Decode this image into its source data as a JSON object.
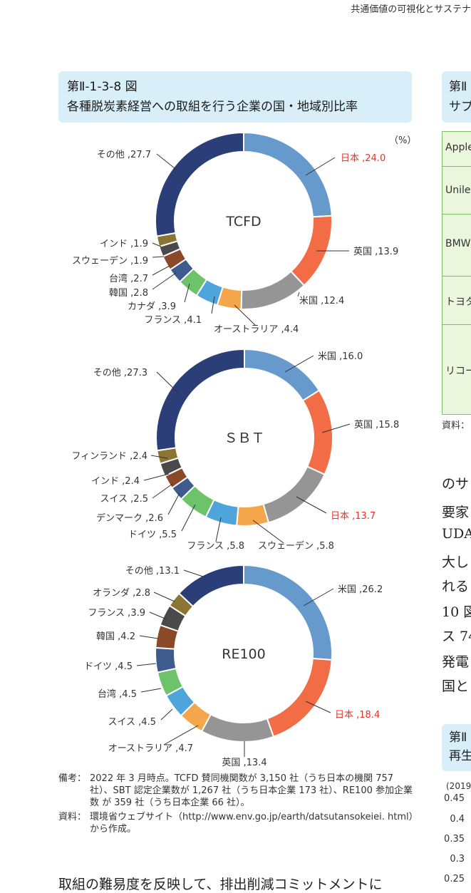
{
  "running_head": "共通価値の可視化とサステナ",
  "figure": {
    "number": "第Ⅱ-1-3-8 図",
    "title": "各種脱炭素経営への取組を行う企業の国・地域別比率",
    "unit": "（%）"
  },
  "colors": {
    "highlight_label": "#e0342c",
    "header_bg": "#d8eef8"
  },
  "chart_data": [
    {
      "type": "pie",
      "center_label": "TCFD",
      "slices": [
        {
          "label": "日本",
          "value": 24.0,
          "text": "日本 ,24.0",
          "color": "#6699cc",
          "highlight": true
        },
        {
          "label": "英国",
          "value": 13.9,
          "text": "英国 ,13.9",
          "color": "#f26d45"
        },
        {
          "label": "米国",
          "value": 12.4,
          "text": "米国 ,12.4",
          "color": "#959595"
        },
        {
          "label": "オーストラリア",
          "value": 4.4,
          "text": "オーストラリア ,4.4",
          "color": "#f6a64a"
        },
        {
          "label": "フランス",
          "value": 4.1,
          "text": "フランス ,4.1",
          "color": "#4ea5dc"
        },
        {
          "label": "カナダ",
          "value": 3.9,
          "text": "カナダ ,3.9",
          "color": "#6cc36a"
        },
        {
          "label": "韓国",
          "value": 2.8,
          "text": "韓国 ,2.8",
          "color": "#3d5b8c"
        },
        {
          "label": "台湾",
          "value": 2.7,
          "text": "台湾 ,2.7",
          "color": "#8a4a2a"
        },
        {
          "label": "スウェーデン",
          "value": 1.9,
          "text": "スウェーデン ,1.9",
          "color": "#4a4a4a"
        },
        {
          "label": "インド",
          "value": 1.9,
          "text": "インド ,1.9",
          "color": "#8a7632"
        },
        {
          "label": "その他",
          "value": 27.7,
          "text": "その他 ,27.7",
          "color": "#2b3e78"
        }
      ]
    },
    {
      "type": "pie",
      "center_label": "ＳＢＴ",
      "slices": [
        {
          "label": "米国",
          "value": 16.0,
          "text": "米国 ,16.0",
          "color": "#6699cc"
        },
        {
          "label": "英国",
          "value": 15.8,
          "text": "英国 ,15.8",
          "color": "#f26d45"
        },
        {
          "label": "日本",
          "value": 13.7,
          "text": "日本 ,13.7",
          "color": "#959595",
          "highlight": true
        },
        {
          "label": "スウェーデン",
          "value": 5.8,
          "text": "スウェーデン ,5.8",
          "color": "#f6a64a"
        },
        {
          "label": "フランス",
          "value": 5.8,
          "text": "フランス ,5.8",
          "color": "#4ea5dc"
        },
        {
          "label": "ドイツ",
          "value": 5.5,
          "text": "ドイツ ,5.5",
          "color": "#6cc36a"
        },
        {
          "label": "デンマーク",
          "value": 2.6,
          "text": "デンマーク ,2.6",
          "color": "#3d5b8c"
        },
        {
          "label": "スイス",
          "value": 2.5,
          "text": "スイス ,2.5",
          "color": "#8a4a2a"
        },
        {
          "label": "インド",
          "value": 2.4,
          "text": "インド ,2.4",
          "color": "#4a4a4a"
        },
        {
          "label": "フィンランド",
          "value": 2.4,
          "text": "フィンランド ,2.4",
          "color": "#8a7632"
        },
        {
          "label": "その他",
          "value": 27.3,
          "text": "その他 ,27.3",
          "color": "#2b3e78"
        }
      ]
    },
    {
      "type": "pie",
      "center_label": "RE100",
      "slices": [
        {
          "label": "米国",
          "value": 26.2,
          "text": "米国 ,26.2",
          "color": "#6699cc"
        },
        {
          "label": "日本",
          "value": 18.4,
          "text": "日本 ,18.4",
          "color": "#f26d45",
          "highlight": true
        },
        {
          "label": "英国",
          "value": 13.4,
          "text": "英国 ,13.4",
          "color": "#959595"
        },
        {
          "label": "オーストラリア",
          "value": 4.7,
          "text": "オーストラリア ,4.7",
          "color": "#f6a64a"
        },
        {
          "label": "スイス",
          "value": 4.5,
          "text": "スイス ,4.5",
          "color": "#4ea5dc"
        },
        {
          "label": "台湾",
          "value": 4.5,
          "text": "台湾 ,4.5",
          "color": "#6cc36a"
        },
        {
          "label": "ドイツ",
          "value": 4.5,
          "text": "ドイツ ,4.5",
          "color": "#3d5b8c"
        },
        {
          "label": "韓国",
          "value": 4.2,
          "text": "韓国 ,4.2",
          "color": "#8a4a2a"
        },
        {
          "label": "フランス",
          "value": 3.9,
          "text": "フランス ,3.9",
          "color": "#4a4a4a"
        },
        {
          "label": "オランダ",
          "value": 2.8,
          "text": "オランダ ,2.8",
          "color": "#8a7632"
        },
        {
          "label": "その他",
          "value": 13.1,
          "text": "その他 ,13.1",
          "color": "#2b3e78"
        }
      ]
    }
  ],
  "notes": {
    "biko_key": "備考：",
    "biko_text": "2022 年 3 月時点。TCFD 賛同機関数が 3,150 社（うち日本の機関 757 社）、SBT 認定企業数が 1,267 社（うち日本企業 173 社）、RE100 参加企業数 が 359 社（うち日本企業 66 社）。",
    "source_key": "資料：",
    "source_text": "環境省ウェブサイト（http://www.env.go.jp/earth/datsutansokeiei. html）から作成。"
  },
  "body_text": "取組の難易度を反映して、排出削減コミットメントに",
  "right_column": {
    "fig_head_line1": "第Ⅱ",
    "fig_head_line2": "サプ",
    "table_rows": [
      "Apple",
      "Unile",
      "BMW",
      "トヨタ",
      "リコー"
    ],
    "source": "資料：",
    "paragraph_lines": [
      "のサ",
      "要家",
      "UDA",
      "大し",
      "れる",
      "10 図",
      "ス 74",
      "発電",
      "国と"
    ],
    "fig2_line1": "第Ⅱ",
    "fig2_line2": "再生",
    "y_unit": "(2019",
    "y_ticks": [
      "0.45",
      "0.4",
      "0.35",
      "0.3",
      "0.25"
    ]
  }
}
